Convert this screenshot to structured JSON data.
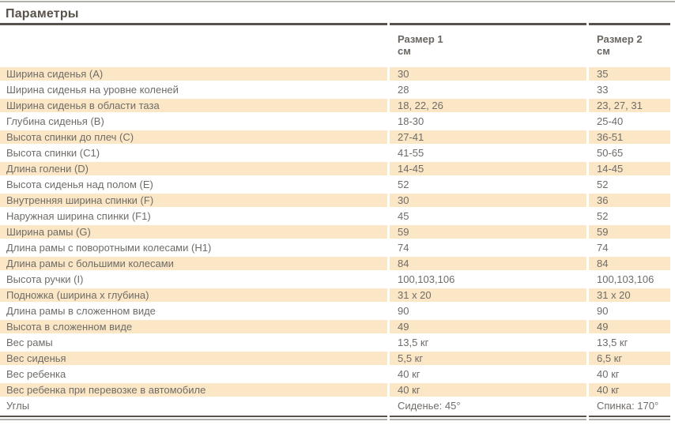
{
  "page": {
    "title": "Параметры"
  },
  "table": {
    "columns": [
      {
        "label": "Размер 1",
        "unit": "см"
      },
      {
        "label": "Размер 2",
        "unit": "см"
      }
    ],
    "rows": [
      {
        "label": "Ширина сиденья (А)",
        "size1": "30",
        "size2": "35"
      },
      {
        "label": "Ширина сиденья на уровне коленей",
        "size1": "28",
        "size2": "33"
      },
      {
        "label": "Ширина сиденья в области таза",
        "size1": "18, 22, 26",
        "size2": "23, 27, 31"
      },
      {
        "label": "Глубина сиденья (В)",
        "size1": "18-30",
        "size2": "25-40"
      },
      {
        "label": "Высота спинки до плеч (С)",
        "size1": "27-41",
        "size2": "36-51"
      },
      {
        "label": "Высота спинки (С1)",
        "size1": "41-55",
        "size2": "50-65"
      },
      {
        "label": "Длина голени (D)",
        "size1": "14-45",
        "size2": "14-45"
      },
      {
        "label": "Высота сиденья над полом (Е)",
        "size1": "52",
        "size2": "52"
      },
      {
        "label": "Внутренняя ширина спинки (F)",
        "size1": "30",
        "size2": "36"
      },
      {
        "label": "Наружная ширина спинки (F1)",
        "size1": "45",
        "size2": "52"
      },
      {
        "label": "Ширина рамы (G)",
        "size1": "59",
        "size2": "59"
      },
      {
        "label": "Длина рамы с поворотными колесами (Н1)",
        "size1": "74",
        "size2": "74"
      },
      {
        "label": "Длина рамы с большими колесами",
        "size1": "84",
        "size2": "84"
      },
      {
        "label": "Высота ручки (I)",
        "size1": "100,103,106",
        "size2": "100,103,106"
      },
      {
        "label": "Подножка (ширина х глубина)",
        "size1": "31 х 20",
        "size2": "31 х 20"
      },
      {
        "label": "Длина рамы в сложенном виде",
        "size1": "90",
        "size2": "90"
      },
      {
        "label": "Высота в сложенном виде",
        "size1": "49",
        "size2": "49"
      },
      {
        "label": "Вес рамы",
        "size1": "13,5 кг",
        "size2": "13,5 кг"
      },
      {
        "label": "Вес сиденья",
        "size1": "5,5 кг",
        "size2": "6,5 кг"
      },
      {
        "label": "Вес ребенка",
        "size1": "40 кг",
        "size2": "40 кг"
      },
      {
        "label": "Вес ребенка при перевозке в автомобиле",
        "size1": "40 кг",
        "size2": "40 кг"
      },
      {
        "label": "Углы",
        "size1": "Сиденье: 45°",
        "size2": "Спинка: 170°"
      }
    ]
  },
  "colors": {
    "row_shaded": "#fbe7c6",
    "body_text": "#6f6c68",
    "heading_text": "#59524b",
    "rule_dark": "#57524c",
    "rule_light": "#b2afab"
  }
}
